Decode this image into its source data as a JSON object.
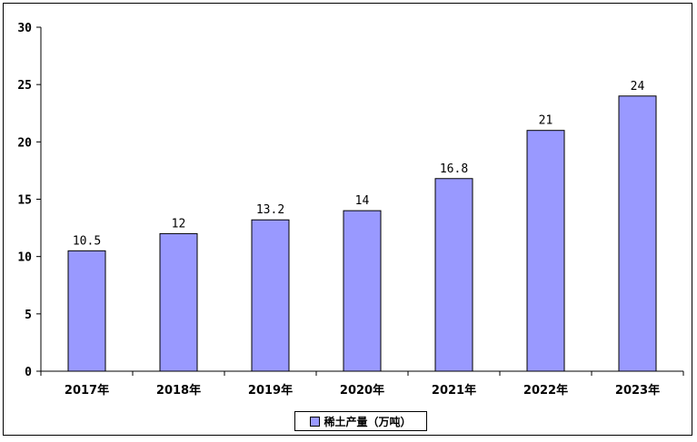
{
  "chart_data": {
    "type": "bar",
    "categories": [
      "2017年",
      "2018年",
      "2019年",
      "2020年",
      "2021年",
      "2022年",
      "2023年"
    ],
    "series": [
      {
        "name": "稀土产量（万吨）",
        "values": [
          10.5,
          12,
          13.2,
          14,
          16.8,
          21,
          24
        ],
        "value_labels": [
          "10.5",
          "12",
          "13.2",
          "14",
          "16.8",
          "21",
          "24"
        ],
        "color": "#9999ff"
      }
    ],
    "ylim": [
      0,
      30
    ],
    "yticks": [
      "0",
      "5",
      "10",
      "15",
      "20",
      "25",
      "30"
    ],
    "ytick_values": [
      0,
      5,
      10,
      15,
      20,
      25,
      30
    ],
    "grid": false,
    "legend_position": "bottom",
    "bar_edge_color": "#000000"
  }
}
